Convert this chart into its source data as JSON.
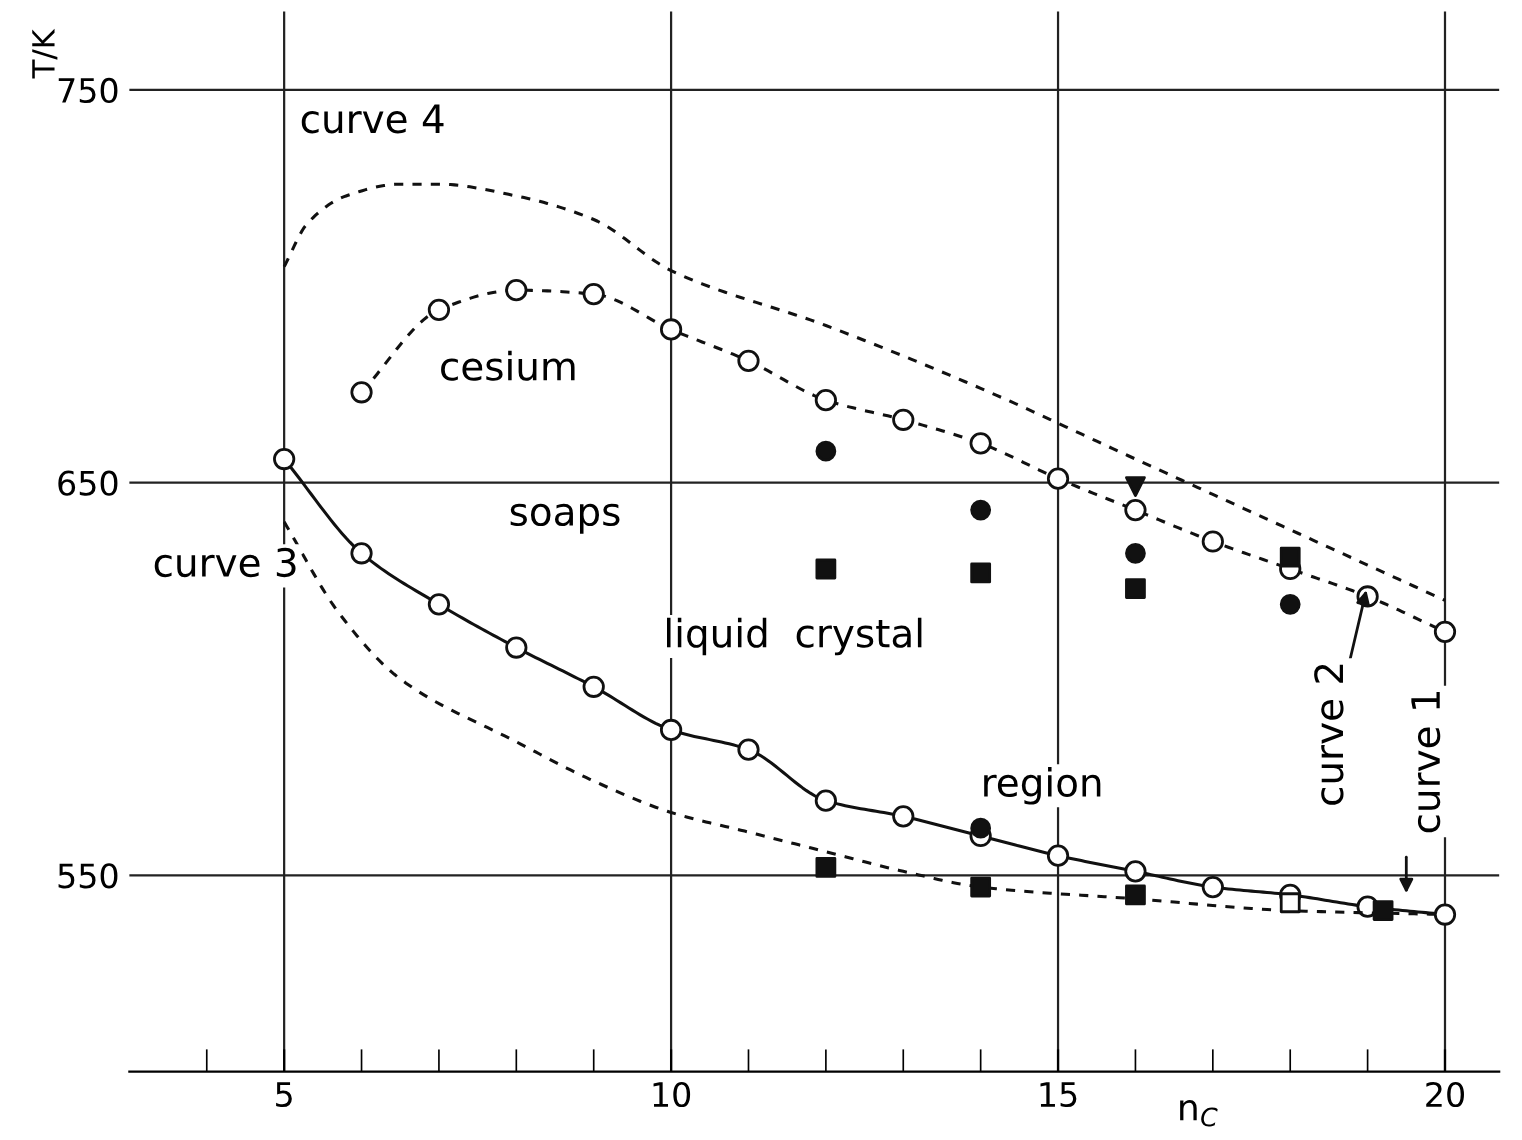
{
  "chart_data": {
    "type": "line",
    "xlabel": "n$_{C}$",
    "ylabel": "T/K",
    "xlim": [
      3,
      20.7
    ],
    "ylim": [
      500,
      770
    ],
    "xticks": [
      {
        "value": 4,
        "label": null
      },
      5,
      {
        "value": 6,
        "label": null
      },
      {
        "value": 7,
        "label": null
      },
      {
        "value": 8,
        "label": null
      },
      {
        "value": 9,
        "label": null
      },
      10,
      {
        "value": 11,
        "label": null
      },
      {
        "value": 12,
        "label": null
      },
      {
        "value": 13,
        "label": null
      },
      {
        "value": 14,
        "label": null
      },
      15,
      {
        "value": 16,
        "label": null
      },
      {
        "value": 17,
        "label": null
      },
      {
        "value": 18,
        "label": null
      },
      {
        "value": 19,
        "label": null
      },
      20
    ],
    "yticks": [
      550,
      650,
      750
    ],
    "grid": true,
    "legend": false,
    "series": [
      {
        "color": "#111111",
        "marker": "circle",
        "line_style": "solid",
        "x": [
          5,
          6,
          7,
          8,
          9,
          10,
          11,
          12,
          13,
          14,
          15,
          16,
          17,
          18,
          19,
          20
        ],
        "values": [
          656,
          632,
          619,
          608,
          598,
          587,
          582,
          569,
          565,
          560,
          555,
          551,
          547,
          545,
          542,
          540
        ]
      },
      {
        "color": "#111111",
        "marker": "circle",
        "line_style": "dashed",
        "x": [
          6,
          7,
          8,
          9,
          10,
          11,
          12,
          13,
          14,
          15,
          16,
          17,
          18,
          19,
          20
        ],
        "values": [
          673,
          694,
          699,
          698,
          689,
          681,
          671,
          666,
          660,
          651,
          643,
          635,
          628,
          621,
          612
        ]
      },
      {
        "color": "#111111",
        "marker": "none",
        "line_style": "dashed",
        "x": [
          5,
          5.3,
          5.8,
          6.5,
          7,
          8,
          9,
          10,
          12,
          14,
          16,
          18,
          20
        ],
        "values": [
          705,
          716,
          723,
          726,
          726,
          723,
          717,
          704,
          690,
          674,
          656,
          638,
          620
        ]
      },
      {
        "color": "#111111",
        "marker": "none",
        "line_style": "dashed",
        "x": [
          5,
          5.7,
          6.5,
          8,
          9,
          10,
          11,
          12,
          13,
          14,
          16,
          18,
          20
        ],
        "values": [
          640,
          617,
          600,
          584,
          574,
          566,
          561,
          556,
          551,
          547,
          544,
          541,
          540
        ]
      },
      {
        "type": "scatter",
        "color": "#111111",
        "marker": "circle",
        "x": [
          12,
          14,
          16,
          18,
          14
        ],
        "values": [
          658,
          643,
          632,
          619,
          562
        ]
      },
      {
        "type": "scatter",
        "color": "#111111",
        "marker": "square",
        "x": [
          12,
          14,
          16,
          18,
          12,
          14,
          16,
          19.2
        ],
        "values": [
          628,
          627,
          623,
          631,
          552,
          547,
          545,
          541
        ]
      },
      {
        "type": "scatter",
        "color": "#ffffff",
        "marker": "square",
        "x": [
          18
        ],
        "values": [
          543
        ]
      },
      {
        "type": "scatter",
        "color": "#111111",
        "marker": "triangle",
        "x": [
          16
        ],
        "values": [
          649
        ]
      }
    ],
    "annotations": [
      "curve 4",
      "cesium",
      "soaps",
      "liquid  crystal",
      "region",
      "curve 3",
      {
        "text": "curve 2",
        "x": 19,
        "y": 621
      },
      {
        "text": "curve 1",
        "x": 19.5,
        "y": 541
      }
    ]
  }
}
